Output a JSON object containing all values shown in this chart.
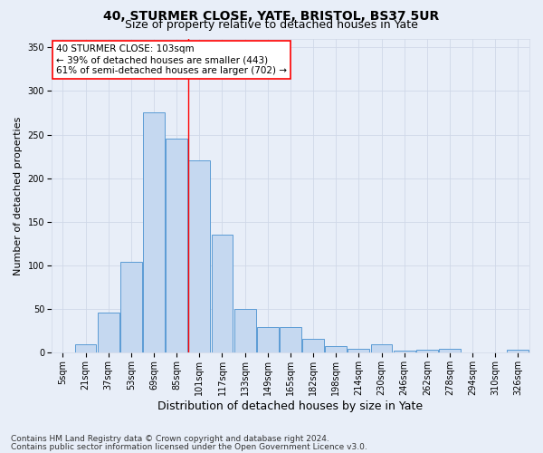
{
  "title": "40, STURMER CLOSE, YATE, BRISTOL, BS37 5UR",
  "subtitle": "Size of property relative to detached houses in Yate",
  "xlabel": "Distribution of detached houses by size in Yate",
  "ylabel": "Number of detached properties",
  "footer_line1": "Contains HM Land Registry data © Crown copyright and database right 2024.",
  "footer_line2": "Contains public sector information licensed under the Open Government Licence v3.0.",
  "categories": [
    "5sqm",
    "21sqm",
    "37sqm",
    "53sqm",
    "69sqm",
    "85sqm",
    "101sqm",
    "117sqm",
    "133sqm",
    "149sqm",
    "165sqm",
    "182sqm",
    "198sqm",
    "214sqm",
    "230sqm",
    "246sqm",
    "262sqm",
    "278sqm",
    "294sqm",
    "310sqm",
    "326sqm"
  ],
  "values": [
    0,
    10,
    46,
    104,
    275,
    245,
    220,
    135,
    50,
    30,
    30,
    16,
    8,
    5,
    10,
    3,
    4,
    5,
    0,
    0,
    4
  ],
  "bar_color": "#c5d8f0",
  "bar_edge_color": "#5b9bd5",
  "vline_x": 5.5,
  "vline_color": "red",
  "annotation_text": "40 STURMER CLOSE: 103sqm\n← 39% of detached houses are smaller (443)\n61% of semi-detached houses are larger (702) →",
  "annotation_box_color": "white",
  "annotation_box_edge_color": "red",
  "ylim": [
    0,
    360
  ],
  "yticks": [
    0,
    50,
    100,
    150,
    200,
    250,
    300,
    350
  ],
  "grid_color": "#d0d8e8",
  "background_color": "#e8eef8",
  "plot_bg_color": "#e8eef8",
  "title_fontsize": 10,
  "subtitle_fontsize": 9,
  "xlabel_fontsize": 9,
  "ylabel_fontsize": 8,
  "tick_fontsize": 7,
  "footer_fontsize": 6.5,
  "annot_fontsize": 7.5
}
